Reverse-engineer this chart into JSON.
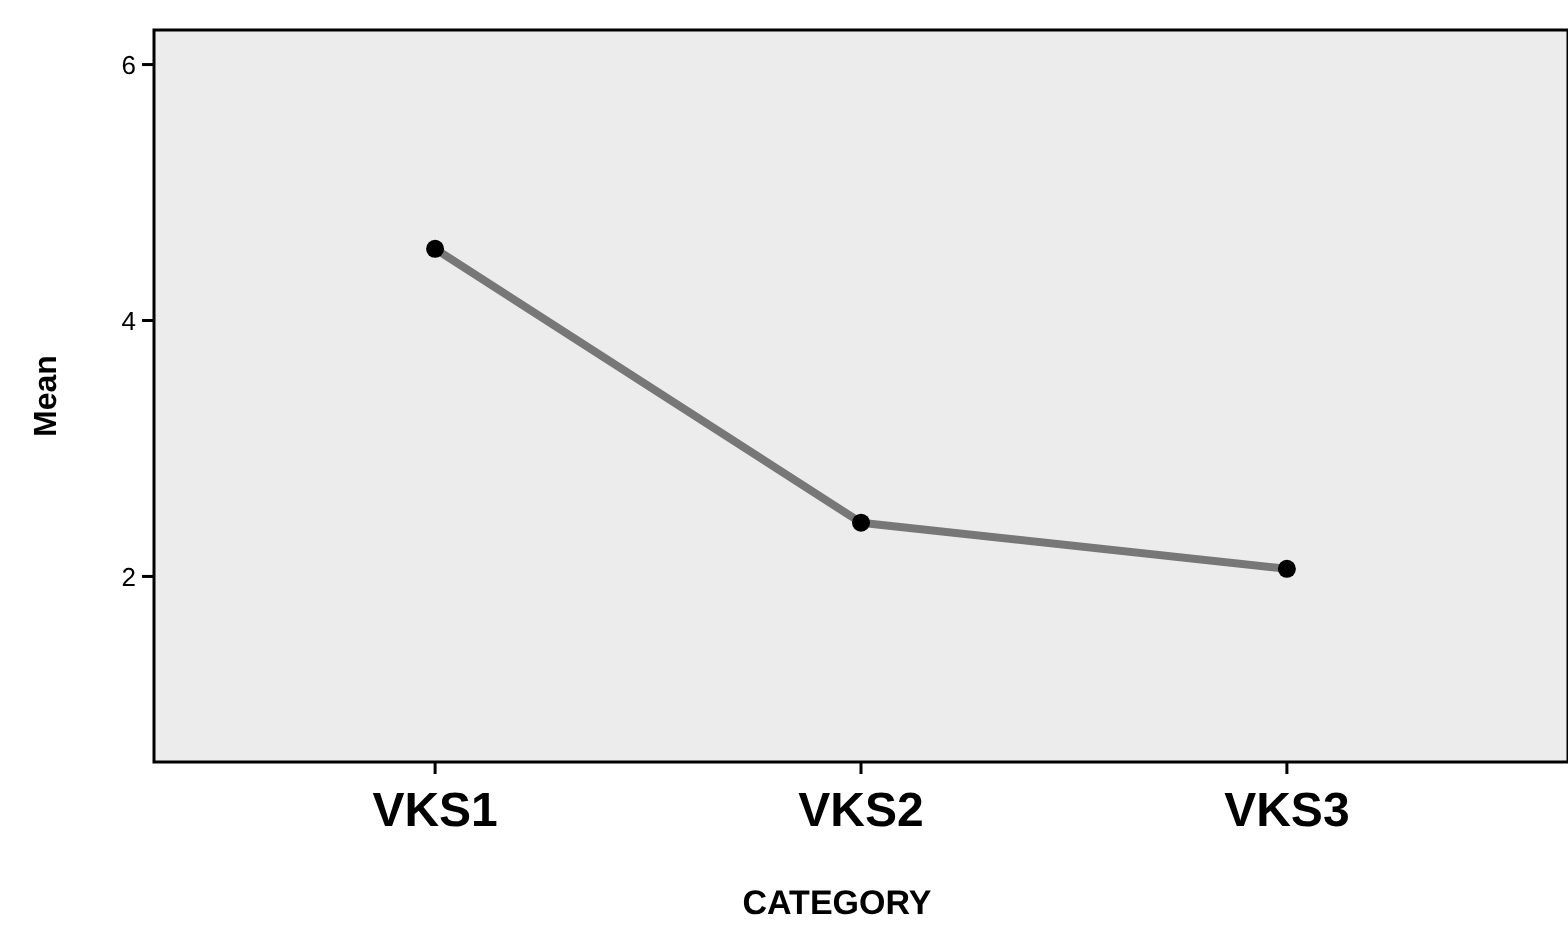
{
  "chart_data": {
    "type": "line",
    "xlabel": "CATEGORY",
    "ylabel": "Mean",
    "categories": [
      "VKS1",
      "VKS2",
      "VKS3"
    ],
    "series": [
      {
        "color": "#777777",
        "values": [
          4.56,
          2.42,
          2.06
        ]
      }
    ],
    "ylim": [
      0.55,
      6.27
    ],
    "yticks": [
      2,
      4,
      6
    ],
    "marker": "circle"
  }
}
